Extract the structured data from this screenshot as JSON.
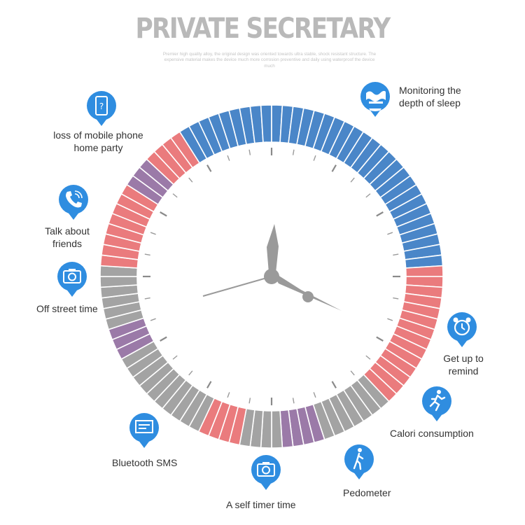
{
  "header": {
    "title": "PRIVATE SECRETARY",
    "subtitle": "Premier high quality alloy, the original design was oriented towards ultra stable, shock resistant structure. The expensive material makes the device much more corrosion preventive and daily using waterproof the device much"
  },
  "features": [
    {
      "key": "sleep",
      "icon": "sleep-wave-icon",
      "label": "Monitoring the depth of sleep"
    },
    {
      "key": "loss",
      "icon": "phone-question-icon",
      "label": "loss of mobile phone home party"
    },
    {
      "key": "talk",
      "icon": "phone-call-icon",
      "label": "Talk about friends"
    },
    {
      "key": "street",
      "icon": "camera-icon",
      "label": "Off street time"
    },
    {
      "key": "getup",
      "icon": "alarm-clock-icon",
      "label": "Get up to remind"
    },
    {
      "key": "calori",
      "icon": "running-icon",
      "label": "Calori consumption"
    },
    {
      "key": "bluetooth",
      "icon": "message-icon",
      "label": "Bluetooth SMS"
    },
    {
      "key": "timer",
      "icon": "camera-icon",
      "label": "A self timer time"
    },
    {
      "key": "pedometer",
      "icon": "walking-icon",
      "label": "Pedometer"
    }
  ],
  "colors": {
    "blue": "#4a86c8",
    "red": "#ea7b7d",
    "purple": "#9b7aa8",
    "gray": "#a3a3a3",
    "hands": "#9a9a9a",
    "icon_blue": "#2f8de0"
  },
  "ring_segments": [
    {
      "color": "blue",
      "count": 27
    },
    {
      "color": "red",
      "count": 14
    },
    {
      "color": "gray",
      "count": 7
    },
    {
      "color": "purple",
      "count": 4
    },
    {
      "color": "gray",
      "count": 4
    },
    {
      "color": "red",
      "count": 4
    },
    {
      "color": "gray",
      "count": 10
    },
    {
      "color": "purple",
      "count": 3
    },
    {
      "color": "gray",
      "count": 6
    },
    {
      "color": "red",
      "count": 8
    },
    {
      "color": "purple",
      "count": 3
    },
    {
      "color": "red",
      "count": 4
    },
    {
      "color": "blue",
      "count": 6
    }
  ]
}
